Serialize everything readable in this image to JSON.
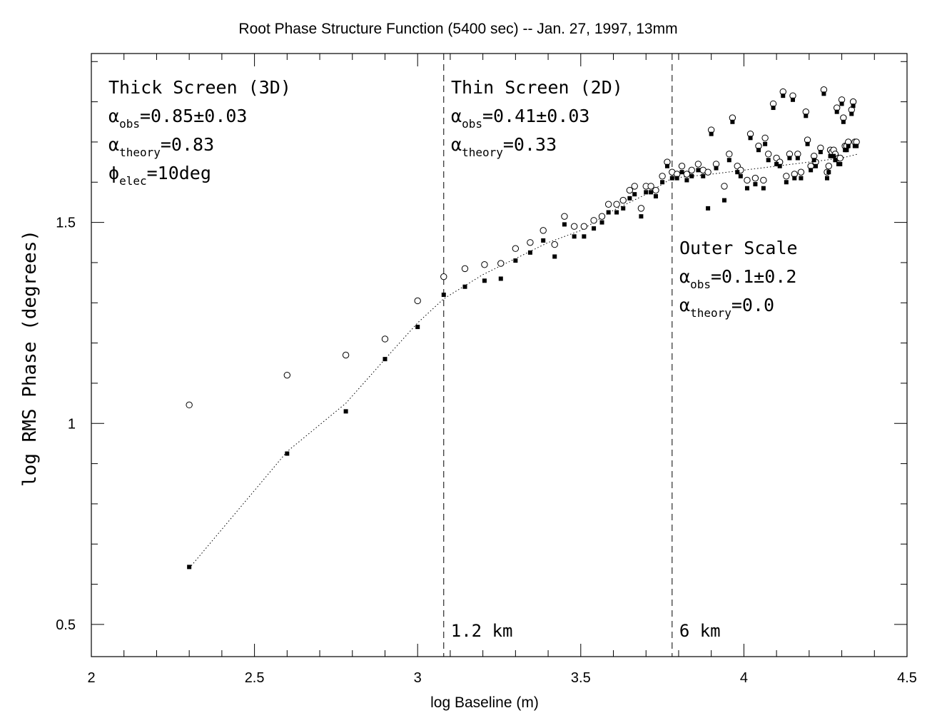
{
  "chart_data": {
    "type": "scatter",
    "title": "Root Phase Structure Function (5400 sec) -- Jan. 27, 1997, 13mm",
    "xlabel": "log Baseline (m)",
    "ylabel": "log RMS Phase (degrees)",
    "xlim": [
      2.0,
      4.5
    ],
    "ylim": [
      0.42,
      1.92
    ],
    "x_ticks": [
      2,
      2.5,
      3,
      3.5,
      4,
      4.5
    ],
    "x_tick_labels": [
      "2",
      "2.5",
      "3",
      "3.5",
      "4",
      "4.5"
    ],
    "y_ticks": [
      0.5,
      1,
      1.5
    ],
    "y_tick_labels": [
      "0.5",
      "1",
      "1.5"
    ],
    "grid": false,
    "vlines": [
      {
        "x": 3.08,
        "label": "1.2 km"
      },
      {
        "x": 3.78,
        "label": "6 km"
      }
    ],
    "annotations": [
      {
        "lines": [
          [
            {
              "t": "Thick Screen (3D)"
            }
          ],
          [
            {
              "t": "α"
            },
            {
              "t": "obs",
              "sub": true
            },
            {
              "t": "=0.85±0.03"
            }
          ],
          [
            {
              "t": "α"
            },
            {
              "t": "theory",
              "sub": true
            },
            {
              "t": "=0.83"
            }
          ],
          [
            {
              "t": "ϕ"
            },
            {
              "t": "elec",
              "sub": true
            },
            {
              "t": "=10deg"
            }
          ]
        ]
      },
      {
        "lines": [
          [
            {
              "t": "Thin Screen (2D)"
            }
          ],
          [
            {
              "t": "α"
            },
            {
              "t": "obs",
              "sub": true
            },
            {
              "t": "=0.41±0.03"
            }
          ],
          [
            {
              "t": "α"
            },
            {
              "t": "theory",
              "sub": true
            },
            {
              "t": "=0.33"
            }
          ]
        ]
      },
      {
        "lines": [
          [
            {
              "t": "Outer Scale"
            }
          ],
          [
            {
              "t": "α"
            },
            {
              "t": "obs",
              "sub": true
            },
            {
              "t": "=0.1±0.2"
            }
          ],
          [
            {
              "t": "α"
            },
            {
              "t": "theory",
              "sub": true
            },
            {
              "t": "=0.0"
            }
          ]
        ]
      }
    ],
    "fit_line": {
      "style": "dotted",
      "x": [
        2.3,
        2.6,
        2.78,
        2.9,
        3.0,
        3.08,
        3.2,
        3.3,
        3.4,
        3.5,
        3.6,
        3.7,
        3.78,
        3.9,
        4.0,
        4.1,
        4.2,
        4.3,
        4.35
      ],
      "y": [
        0.64,
        0.93,
        1.05,
        1.16,
        1.25,
        1.31,
        1.37,
        1.41,
        1.45,
        1.48,
        1.53,
        1.57,
        1.61,
        1.62,
        1.63,
        1.64,
        1.65,
        1.66,
        1.67
      ]
    },
    "series": [
      {
        "marker": "open-circle",
        "x": [
          2.3,
          2.6,
          2.78,
          2.9,
          3.0,
          3.08,
          3.145,
          3.205,
          3.255,
          3.3,
          3.345,
          3.385,
          3.42,
          3.45,
          3.48,
          3.51,
          3.54,
          3.565,
          3.585,
          3.61,
          3.63,
          3.65,
          3.665,
          3.685,
          3.7,
          3.715,
          3.73,
          3.75,
          3.765,
          3.78,
          3.795,
          3.81,
          3.825,
          3.84,
          3.86,
          3.875,
          3.89,
          3.9,
          3.915,
          3.94,
          3.955,
          3.965,
          3.98,
          3.99,
          4.01,
          4.02,
          4.035,
          4.045,
          4.06,
          4.065,
          4.075,
          4.09,
          4.1,
          4.11,
          4.12,
          4.13,
          4.14,
          4.15,
          4.155,
          4.165,
          4.175,
          4.19,
          4.195,
          4.205,
          4.215,
          4.22,
          4.235,
          4.245,
          4.255,
          4.26,
          4.265,
          4.27,
          4.275,
          4.28,
          4.285,
          4.29,
          4.295,
          4.3,
          4.305,
          4.31,
          4.315,
          4.32,
          4.33,
          4.335,
          4.34,
          4.345
        ],
        "y": [
          1.046,
          1.12,
          1.17,
          1.21,
          1.305,
          1.365,
          1.385,
          1.395,
          1.398,
          1.435,
          1.45,
          1.48,
          1.445,
          1.515,
          1.49,
          1.49,
          1.505,
          1.515,
          1.545,
          1.545,
          1.555,
          1.58,
          1.59,
          1.535,
          1.59,
          1.59,
          1.58,
          1.615,
          1.65,
          1.625,
          1.62,
          1.64,
          1.62,
          1.63,
          1.645,
          1.63,
          1.625,
          1.73,
          1.645,
          1.59,
          1.67,
          1.76,
          1.64,
          1.63,
          1.605,
          1.72,
          1.61,
          1.69,
          1.605,
          1.71,
          1.67,
          1.795,
          1.66,
          1.65,
          1.825,
          1.615,
          1.67,
          1.815,
          1.62,
          1.67,
          1.625,
          1.775,
          1.705,
          1.64,
          1.665,
          1.65,
          1.685,
          1.83,
          1.625,
          1.64,
          1.68,
          1.675,
          1.68,
          1.67,
          1.785,
          1.66,
          1.66,
          1.805,
          1.76,
          1.69,
          1.69,
          1.7,
          1.78,
          1.8,
          1.7,
          1.7
        ]
      },
      {
        "marker": "filled-square",
        "x": [
          2.3,
          2.6,
          2.78,
          2.9,
          3.0,
          3.08,
          3.145,
          3.205,
          3.255,
          3.3,
          3.345,
          3.385,
          3.42,
          3.45,
          3.48,
          3.51,
          3.54,
          3.565,
          3.585,
          3.61,
          3.63,
          3.65,
          3.665,
          3.685,
          3.7,
          3.715,
          3.73,
          3.75,
          3.765,
          3.78,
          3.795,
          3.81,
          3.825,
          3.84,
          3.86,
          3.875,
          3.89,
          3.9,
          3.915,
          3.94,
          3.955,
          3.965,
          3.98,
          3.99,
          4.01,
          4.02,
          4.035,
          4.045,
          4.06,
          4.065,
          4.075,
          4.09,
          4.1,
          4.11,
          4.12,
          4.13,
          4.14,
          4.15,
          4.155,
          4.165,
          4.175,
          4.19,
          4.195,
          4.205,
          4.215,
          4.22,
          4.235,
          4.245,
          4.255,
          4.26,
          4.265,
          4.27,
          4.275,
          4.28,
          4.285,
          4.29,
          4.295,
          4.3,
          4.305,
          4.31,
          4.315,
          4.32,
          4.33,
          4.335,
          4.34,
          4.345
        ],
        "y": [
          0.643,
          0.925,
          1.03,
          1.16,
          1.24,
          1.32,
          1.34,
          1.355,
          1.36,
          1.405,
          1.425,
          1.455,
          1.415,
          1.495,
          1.465,
          1.465,
          1.485,
          1.5,
          1.525,
          1.525,
          1.535,
          1.56,
          1.57,
          1.515,
          1.575,
          1.575,
          1.565,
          1.6,
          1.64,
          1.61,
          1.61,
          1.625,
          1.605,
          1.615,
          1.63,
          1.615,
          1.535,
          1.72,
          1.635,
          1.555,
          1.655,
          1.75,
          1.625,
          1.615,
          1.585,
          1.71,
          1.595,
          1.68,
          1.585,
          1.695,
          1.655,
          1.785,
          1.645,
          1.64,
          1.815,
          1.6,
          1.66,
          1.805,
          1.61,
          1.66,
          1.61,
          1.765,
          1.695,
          1.63,
          1.655,
          1.64,
          1.675,
          1.82,
          1.61,
          1.625,
          1.665,
          1.665,
          1.665,
          1.655,
          1.775,
          1.645,
          1.645,
          1.795,
          1.75,
          1.68,
          1.68,
          1.69,
          1.77,
          1.79,
          1.69,
          1.69
        ]
      }
    ]
  }
}
